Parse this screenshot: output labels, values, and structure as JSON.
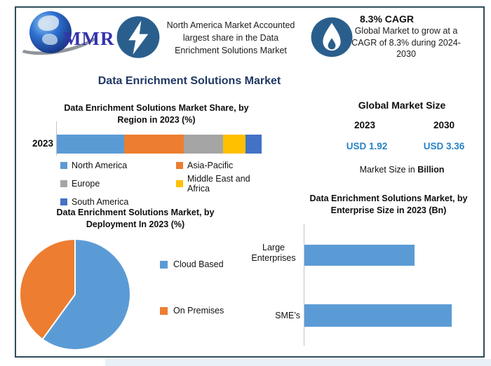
{
  "page": {
    "frame_border_color": "#2f4d5c",
    "bottom_strip_color": "#e9f1f7"
  },
  "header": {
    "logo_text": "MMR",
    "badge_color": "#2a5f8d",
    "note1_lines": [
      "North America Market Accounted",
      "largest share in the Data",
      "Enrichment Solutions Market"
    ],
    "cagr_title": "8.3% CAGR",
    "cagr_lines": [
      "Global Market to grow at a",
      "CAGR of 8.3% during 2024-",
      "2030"
    ]
  },
  "main_title": "Data Enrichment Solutions Market",
  "market_size": {
    "title": "Global Market Size",
    "year_left": "2023",
    "year_right": "2030",
    "value_left": "USD 1.92",
    "value_right": "USD 3.36",
    "value_color": "#2783c5",
    "footnote_prefix": "Market Size in ",
    "footnote_bold": "Billion"
  },
  "chart_data": [
    {
      "type": "bar",
      "variant": "stacked-horizontal",
      "title": "Data Enrichment Solutions Market Share, by Region in 2023 (%)",
      "title_lines": [
        "Data Enrichment Solutions Market Share, by",
        "Region in 2023 (%)"
      ],
      "categories": [
        "2023"
      ],
      "series": [
        {
          "name": "North America",
          "values": [
            33
          ],
          "color": "#5B9BD5"
        },
        {
          "name": "Asia-Pacific",
          "values": [
            29
          ],
          "color": "#ED7D31"
        },
        {
          "name": "Europe",
          "values": [
            19
          ],
          "color": "#A5A5A5"
        },
        {
          "name": "Middle East and Africa",
          "values": [
            11
          ],
          "color": "#FFC000"
        },
        {
          "name": "South America",
          "values": [
            8
          ],
          "color": "#4472C4"
        }
      ],
      "unit": "%",
      "xlim": [
        0,
        100
      ],
      "grid": false,
      "legend_position": "bottom"
    },
    {
      "type": "pie",
      "title": "Data Enrichment Solutions Market, by Deployment In 2023 (%)",
      "title_lines": [
        "Data Enrichment Solutions Market, by",
        "Deployment In 2023 (%)"
      ],
      "labels": [
        "Cloud Based",
        "On Premises"
      ],
      "values": [
        60,
        40
      ],
      "colors": [
        "#5B9BD5",
        "#ED7D31"
      ],
      "start_angle_deg": 0,
      "unit": "%",
      "legend_position": "right"
    },
    {
      "type": "bar",
      "variant": "horizontal",
      "title": "Data Enrichment Solutions Market, by Enterprise Size in 2023 (Bn)",
      "title_lines": [
        "Data Enrichment Solutions Market, by",
        "Enterprise Size in 2023 (Bn)"
      ],
      "categories": [
        "Large Enterprises",
        "SME’s"
      ],
      "values": [
        0.82,
        1.1
      ],
      "color": "#5B9BD5",
      "unit": "Bn",
      "xlim": [
        0,
        1.35
      ],
      "grid": false
    }
  ]
}
